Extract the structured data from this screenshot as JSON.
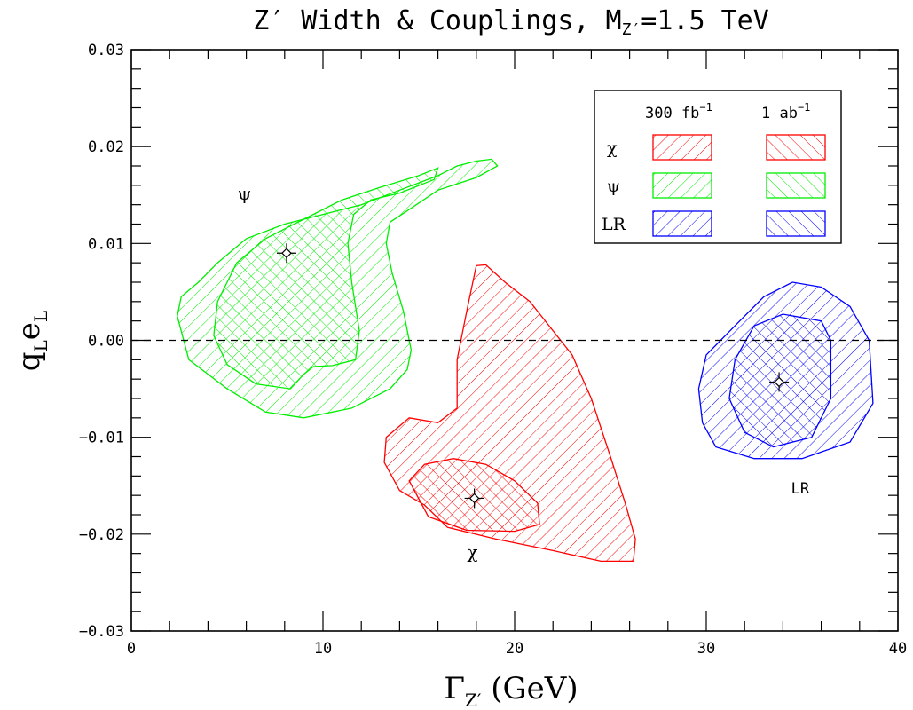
{
  "chart_data": {
    "type": "area",
    "title": "Z′ Width & Couplings, M",
    "title_sub": "Z′",
    "title_tail": "=1.5 TeV",
    "xlabel": "Γ",
    "xlabel_sub": "Z′",
    "xlabel_tail": " (GeV)",
    "ylabel": "q",
    "ylabel_sub1": "L",
    "ylabel_mid": "e",
    "ylabel_sub2": "L",
    "xlim": [
      0,
      40
    ],
    "ylim": [
      -0.03,
      0.03
    ],
    "xticks": [
      0,
      10,
      20,
      30,
      40
    ],
    "xtick_labels": [
      "0",
      "10",
      "20",
      "30",
      "40"
    ],
    "yticks": [
      -0.03,
      -0.02,
      -0.01,
      0.0,
      0.01,
      0.02,
      0.03
    ],
    "ytick_labels": [
      "−0.03",
      "−0.02",
      "−0.01",
      "0.00",
      "0.01",
      "0.02",
      "0.03"
    ],
    "reference_line": {
      "y": 0.0,
      "style": "dashed"
    },
    "legend": {
      "placement": "top-right",
      "columns": [
        "300 fb",
        "1 ab"
      ],
      "column_sup": "−1",
      "rows": [
        {
          "label": "χ",
          "color": "#ff0000"
        },
        {
          "label": "ψ",
          "color": "#00ee00"
        },
        {
          "label": "LR",
          "color": "#0000ff"
        }
      ]
    },
    "series": [
      {
        "name": "ψ",
        "color": "#00ee00",
        "best_fit": [
          8.1,
          0.009
        ],
        "annotation": {
          "text": "ψ",
          "at": [
            5.9,
            0.0145
          ]
        },
        "regions": {
          "300 fb-1": [
            [
              2.6,
              0.0045
            ],
            [
              3.5,
              0.006
            ],
            [
              4.5,
              0.008
            ],
            [
              6,
              0.0105
            ],
            [
              8,
              0.012
            ],
            [
              10,
              0.013
            ],
            [
              12,
              0.014
            ],
            [
              14,
              0.0155
            ],
            [
              16,
              0.017
            ],
            [
              17,
              0.018
            ],
            [
              18,
              0.0185
            ],
            [
              18.8,
              0.0187
            ],
            [
              19.1,
              0.018
            ],
            [
              18,
              0.0168
            ],
            [
              16,
              0.0155
            ],
            [
              14.5,
              0.0135
            ],
            [
              13.5,
              0.0122
            ],
            [
              13.3,
              0.01
            ],
            [
              13.6,
              0.007
            ],
            [
              14.2,
              0.003
            ],
            [
              14.5,
              0
            ],
            [
              14.6,
              -0.001
            ],
            [
              14.4,
              -0.003
            ],
            [
              13.5,
              -0.005
            ],
            [
              11.5,
              -0.007
            ],
            [
              9,
              -0.008
            ],
            [
              7,
              -0.0074
            ],
            [
              5,
              -0.005
            ],
            [
              3,
              -0.002
            ],
            [
              2.4,
              0.0025
            ]
          ],
          "1 ab-1": [
            [
              4.5,
              0.004
            ],
            [
              5.5,
              0.008
            ],
            [
              7,
              0.0105
            ],
            [
              9,
              0.0125
            ],
            [
              11,
              0.0145
            ],
            [
              13,
              0.0158
            ],
            [
              15,
              0.017
            ],
            [
              16,
              0.0178
            ],
            [
              15.8,
              0.0166
            ],
            [
              14,
              0.0152
            ],
            [
              12.5,
              0.0145
            ],
            [
              11.6,
              0.013
            ],
            [
              11.3,
              0.01
            ],
            [
              11.5,
              0.006
            ],
            [
              11.9,
              0.001
            ],
            [
              11.7,
              -0.002
            ],
            [
              10.5,
              -0.0026
            ],
            [
              9.5,
              -0.0027
            ],
            [
              9,
              -0.0035
            ],
            [
              8.3,
              -0.005
            ],
            [
              6.5,
              -0.0045
            ],
            [
              5,
              -0.0025
            ],
            [
              4.3,
              0.0005
            ]
          ]
        }
      },
      {
        "name": "χ",
        "color": "#ff0000",
        "best_fit": [
          17.9,
          -0.0163
        ],
        "annotation": {
          "text": "χ",
          "at": [
            17.8,
            -0.0225
          ]
        },
        "regions": {
          "300 fb-1": [
            [
              17.5,
              0.003
            ],
            [
              18,
              0.0077
            ],
            [
              18.5,
              0.0078
            ],
            [
              19.5,
              0.006
            ],
            [
              20.8,
              0.004
            ],
            [
              22,
              0.001
            ],
            [
              23,
              -0.0015
            ],
            [
              24,
              -0.006
            ],
            [
              25,
              -0.012
            ],
            [
              25.8,
              -0.017
            ],
            [
              26.3,
              -0.0205
            ],
            [
              26.2,
              -0.0228
            ],
            [
              24.5,
              -0.0228
            ],
            [
              22,
              -0.0217
            ],
            [
              19,
              -0.0205
            ],
            [
              16.5,
              -0.0193
            ],
            [
              15.3,
              -0.017
            ],
            [
              14,
              -0.0155
            ],
            [
              13.2,
              -0.0126
            ],
            [
              13.3,
              -0.01
            ],
            [
              14.5,
              -0.008
            ],
            [
              16,
              -0.0085
            ],
            [
              17,
              -0.007
            ],
            [
              17,
              -0.002
            ]
          ],
          "1 ab-1": [
            [
              14.5,
              -0.0145
            ],
            [
              15.3,
              -0.0128
            ],
            [
              16.8,
              -0.0122
            ],
            [
              18.5,
              -0.0128
            ],
            [
              20,
              -0.0145
            ],
            [
              21.2,
              -0.0168
            ],
            [
              21.3,
              -0.019
            ],
            [
              20,
              -0.0197
            ],
            [
              17.5,
              -0.0196
            ],
            [
              15.5,
              -0.0182
            ]
          ]
        }
      },
      {
        "name": "LR",
        "color": "#0000ff",
        "best_fit": [
          33.8,
          -0.0043
        ],
        "annotation": {
          "text": "LR",
          "at": [
            34.9,
            -0.0158
          ]
        },
        "regions": {
          "300 fb-1": [
            [
              30,
              -0.0015
            ],
            [
              31.5,
              0.0015
            ],
            [
              33,
              0.0045
            ],
            [
              34.5,
              0.006
            ],
            [
              36,
              0.0055
            ],
            [
              37.5,
              0.0035
            ],
            [
              38.5,
              0
            ],
            [
              38.7,
              -0.0065
            ],
            [
              37.5,
              -0.0105
            ],
            [
              35,
              -0.0122
            ],
            [
              32.5,
              -0.0122
            ],
            [
              30.5,
              -0.011
            ],
            [
              29.8,
              -0.0085
            ],
            [
              29.6,
              -0.005
            ]
          ],
          "1 ab-1": [
            [
              31.5,
              -0.002
            ],
            [
              32.5,
              0.0015
            ],
            [
              34,
              0.0027
            ],
            [
              36,
              0.002
            ],
            [
              36.5,
              0
            ],
            [
              36.5,
              -0.006
            ],
            [
              35.5,
              -0.01
            ],
            [
              33.5,
              -0.011
            ],
            [
              32,
              -0.0095
            ],
            [
              31.2,
              -0.006
            ]
          ]
        }
      }
    ]
  }
}
